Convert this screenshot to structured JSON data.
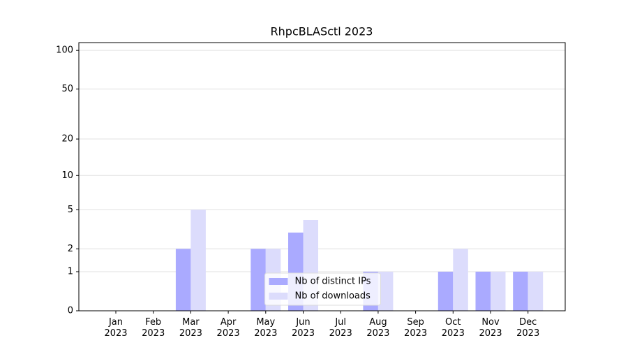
{
  "chart_data": {
    "type": "bar",
    "title": "RhpcBLASctl 2023",
    "categories": [
      "Jan 2023",
      "Feb 2023",
      "Mar 2023",
      "Apr 2023",
      "May 2023",
      "Jun 2023",
      "Jul 2023",
      "Aug 2023",
      "Sep 2023",
      "Oct 2023",
      "Nov 2023",
      "Dec 2023"
    ],
    "series": [
      {
        "name": "Nb of distinct IPs",
        "color": "#aaaaff",
        "values": [
          0,
          0,
          2,
          0,
          2,
          3,
          0,
          1,
          0,
          1,
          1,
          1
        ]
      },
      {
        "name": "Nb of downloads",
        "color": "#dcdcfc",
        "values": [
          0,
          0,
          5,
          0,
          2,
          4,
          0,
          1,
          0,
          2,
          1,
          1
        ]
      }
    ],
    "y_scale": "log1p",
    "ylim": [
      0,
      115
    ],
    "yticks": [
      0,
      1,
      2,
      5,
      10,
      20,
      50,
      100
    ],
    "grid": true,
    "legend": "lower center"
  }
}
